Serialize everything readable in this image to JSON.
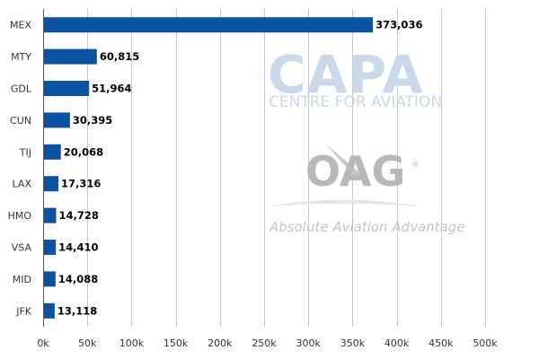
{
  "chart_data": {
    "type": "bar",
    "orientation": "horizontal",
    "categories": [
      "MEX",
      "MTY",
      "GDL",
      "CUN",
      "TIJ",
      "LAX",
      "HMO",
      "VSA",
      "MID",
      "JFK"
    ],
    "values": [
      373036,
      60815,
      51964,
      30395,
      20068,
      17316,
      14728,
      14410,
      14088,
      13118
    ],
    "value_labels": [
      "373,036",
      "60,815",
      "51,964",
      "30,395",
      "20,068",
      "17,316",
      "14,728",
      "14,410",
      "14,088",
      "13,118"
    ],
    "xlim": [
      0,
      500000
    ],
    "x_ticks": [
      0,
      50000,
      100000,
      150000,
      200000,
      250000,
      300000,
      350000,
      400000,
      450000,
      500000
    ],
    "x_tick_labels": [
      "0k",
      "50k",
      "100k",
      "150k",
      "200k",
      "250k",
      "300k",
      "350k",
      "400k",
      "450k",
      "500k"
    ],
    "grid": "vertical",
    "bar_color": "#0b52a0",
    "grid_color": "#c8c8c8",
    "axis_color": "#555555",
    "title": "",
    "xlabel": "",
    "ylabel": ""
  },
  "watermark": {
    "capa_text": "CAPA",
    "capa_subtext": "CENTRE FOR AVIATION",
    "oag_text": "OAG",
    "oag_mark": "®",
    "oag_tagline": "Absolute Aviation Advantage",
    "capa_color": "#c9d9ea",
    "oag_color": "#b8b8b8"
  }
}
